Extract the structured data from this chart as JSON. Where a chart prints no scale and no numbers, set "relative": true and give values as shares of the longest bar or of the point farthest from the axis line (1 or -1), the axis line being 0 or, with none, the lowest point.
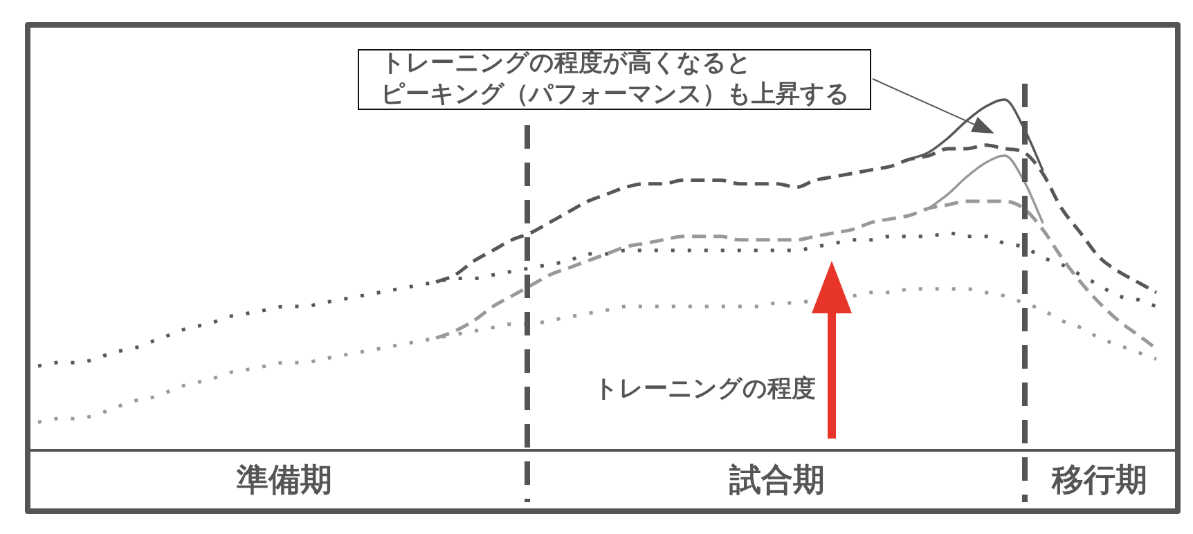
{
  "chart_data": {
    "type": "line",
    "relative": true,
    "tick_labels": "x",
    "categories": [
      null,
      null,
      null,
      null,
      null,
      null,
      null,
      null,
      null,
      null,
      null,
      null,
      null,
      "準備期",
      null,
      null,
      null,
      null,
      null,
      null,
      null,
      null,
      null,
      null,
      null,
      null,
      null,
      null,
      null,
      null,
      null,
      null,
      null,
      null,
      null,
      null,
      null,
      null,
      null,
      "試合期",
      null,
      null,
      null,
      null,
      null,
      null,
      null,
      null,
      null,
      null,
      null,
      null,
      null,
      null,
      null,
      null,
      "移行期",
      null,
      null,
      null
    ],
    "series": [
      {
        "color": "#575757",
        "line_style": "dotted",
        "values": [
          0.24,
          0.25,
          0.25,
          0.26,
          0.28,
          0.29,
          0.31,
          0.33,
          0.35,
          0.36,
          0.38,
          0.39,
          0.4,
          0.41,
          0.41,
          0.42,
          0.43,
          0.44,
          0.45,
          0.46,
          0.47,
          0.48,
          0.49,
          0.49,
          0.5,
          0.51,
          0.52,
          0.53,
          0.54,
          0.56,
          0.56,
          0.57,
          0.57,
          0.57,
          0.57,
          0.57,
          0.57,
          0.57,
          0.57,
          0.57,
          0.57,
          0.58,
          0.59,
          0.6,
          0.6,
          0.61,
          0.61,
          0.61,
          0.62,
          0.61,
          0.61,
          0.59,
          0.58,
          0.55,
          0.53,
          0.5,
          0.47,
          0.44,
          0.43,
          0.41
        ]
      },
      {
        "color": "#999999",
        "line_style": "dotted",
        "values": [
          0.08,
          0.09,
          0.09,
          0.1,
          0.12,
          0.14,
          0.15,
          0.17,
          0.19,
          0.2,
          0.22,
          0.23,
          0.24,
          0.25,
          0.25,
          0.26,
          0.27,
          0.28,
          0.29,
          0.3,
          0.31,
          0.32,
          0.33,
          0.34,
          0.35,
          0.36,
          0.36,
          0.37,
          0.38,
          0.39,
          0.4,
          0.41,
          0.41,
          0.41,
          0.41,
          0.41,
          0.41,
          0.41,
          0.41,
          0.42,
          0.42,
          0.43,
          null,
          0.44,
          0.45,
          0.45,
          0.46,
          0.46,
          0.46,
          0.46,
          0.45,
          0.44,
          0.42,
          0.4,
          0.37,
          0.35,
          0.32,
          0.3,
          0.28,
          0.26
        ]
      },
      {
        "color": "#575757",
        "line_style": "dashed",
        "values": [
          null,
          null,
          null,
          null,
          null,
          null,
          null,
          null,
          null,
          null,
          null,
          null,
          null,
          null,
          null,
          null,
          null,
          null,
          null,
          null,
          null,
          0.48,
          0.5,
          0.54,
          0.57,
          0.6,
          0.62,
          0.65,
          0.68,
          0.71,
          0.73,
          0.75,
          0.76,
          0.76,
          0.77,
          0.77,
          0.77,
          0.76,
          0.76,
          0.76,
          0.75,
          0.77,
          0.78,
          0.79,
          0.8,
          0.81,
          0.83,
          0.84,
          0.86,
          0.86,
          0.87,
          0.86,
          0.85,
          0.79,
          0.69,
          0.62,
          0.55,
          0.51,
          0.48,
          0.45
        ]
      },
      {
        "color": "#999999",
        "line_style": "dashed",
        "values": [
          null,
          null,
          null,
          null,
          null,
          null,
          null,
          null,
          null,
          null,
          null,
          null,
          null,
          null,
          null,
          null,
          null,
          null,
          null,
          null,
          null,
          0.32,
          0.34,
          0.37,
          0.41,
          0.44,
          0.47,
          0.5,
          0.52,
          0.54,
          0.56,
          0.58,
          0.59,
          0.6,
          0.61,
          0.61,
          0.61,
          0.6,
          0.6,
          0.6,
          0.6,
          0.61,
          0.62,
          0.63,
          0.65,
          0.66,
          0.67,
          0.69,
          0.7,
          0.71,
          0.71,
          0.71,
          0.69,
          0.63,
          0.55,
          0.48,
          0.42,
          0.37,
          0.33,
          0.29
        ]
      },
      {
        "color": "#575757",
        "line_style": "solid",
        "values": [
          null,
          null,
          null,
          null,
          null,
          null,
          null,
          null,
          null,
          null,
          null,
          null,
          null,
          null,
          null,
          null,
          null,
          null,
          null,
          null,
          null,
          null,
          null,
          null,
          null,
          null,
          null,
          null,
          null,
          null,
          null,
          null,
          null,
          null,
          null,
          null,
          null,
          null,
          null,
          null,
          null,
          null,
          null,
          null,
          null,
          null,
          0.83,
          0.85,
          0.89,
          0.94,
          0.98,
          1.0,
          0.92,
          0.8,
          null,
          null,
          null,
          null,
          null,
          null
        ]
      },
      {
        "color": "#999999",
        "line_style": "solid",
        "values": [
          null,
          null,
          null,
          null,
          null,
          null,
          null,
          null,
          null,
          null,
          null,
          null,
          null,
          null,
          null,
          null,
          null,
          null,
          null,
          null,
          null,
          null,
          null,
          null,
          null,
          null,
          null,
          null,
          null,
          null,
          null,
          null,
          null,
          null,
          null,
          null,
          null,
          null,
          null,
          null,
          null,
          null,
          null,
          null,
          null,
          null,
          null,
          0.69,
          0.73,
          0.78,
          0.82,
          0.84,
          0.77,
          0.65,
          null,
          null,
          null,
          null,
          null,
          null
        ]
      }
    ],
    "annotations": [
      "トレーニングの程度が高くなると",
      "ピーキング（パフォーマンス）も上昇する",
      "トレーニングの程度"
    ]
  }
}
